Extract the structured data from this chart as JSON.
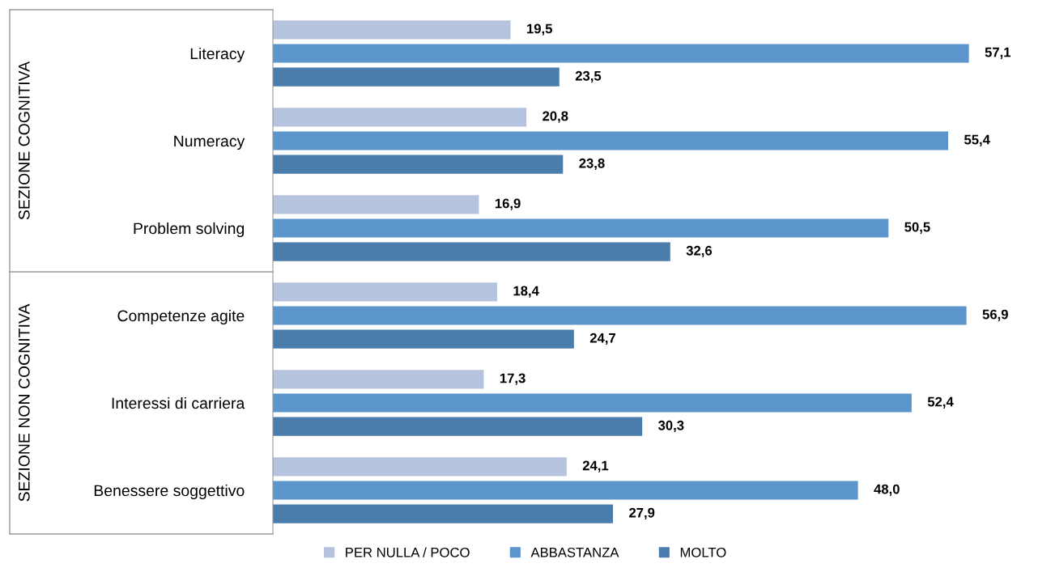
{
  "chart_data": {
    "type": "bar",
    "orientation": "horizontal",
    "categories": [
      "Literacy",
      "Numeracy",
      "Problem solving",
      "Competenze agite",
      "Interessi di carriera",
      "Benessere soggettivo"
    ],
    "series": [
      {
        "name": "PER NULLA / POCO",
        "color": "#b5c3de",
        "values": [
          19.5,
          20.8,
          16.9,
          18.4,
          17.3,
          24.1
        ],
        "value_labels": [
          "19,5",
          "20,8",
          "16,9",
          "18,4",
          "17,3",
          "24,1"
        ]
      },
      {
        "name": "ABBASTANZA",
        "color": "#5b95cb",
        "values": [
          57.1,
          55.4,
          50.5,
          56.9,
          52.4,
          48.0
        ],
        "value_labels": [
          "57,1",
          "55,4",
          "50,5",
          "56,9",
          "52,4",
          "48,0"
        ]
      },
      {
        "name": "MOLTO",
        "color": "#4a7cac",
        "values": [
          23.5,
          23.8,
          32.6,
          24.7,
          30.3,
          27.9
        ],
        "value_labels": [
          "23,5",
          "23,8",
          "32,6",
          "24,7",
          "30,3",
          "27,9"
        ]
      }
    ],
    "annotations": [
      "SEZIONE COGNITIVA",
      "SEZIONE NON COGNITIVA"
    ],
    "legend": "bottom",
    "grid": false,
    "tick_labels": "y"
  }
}
